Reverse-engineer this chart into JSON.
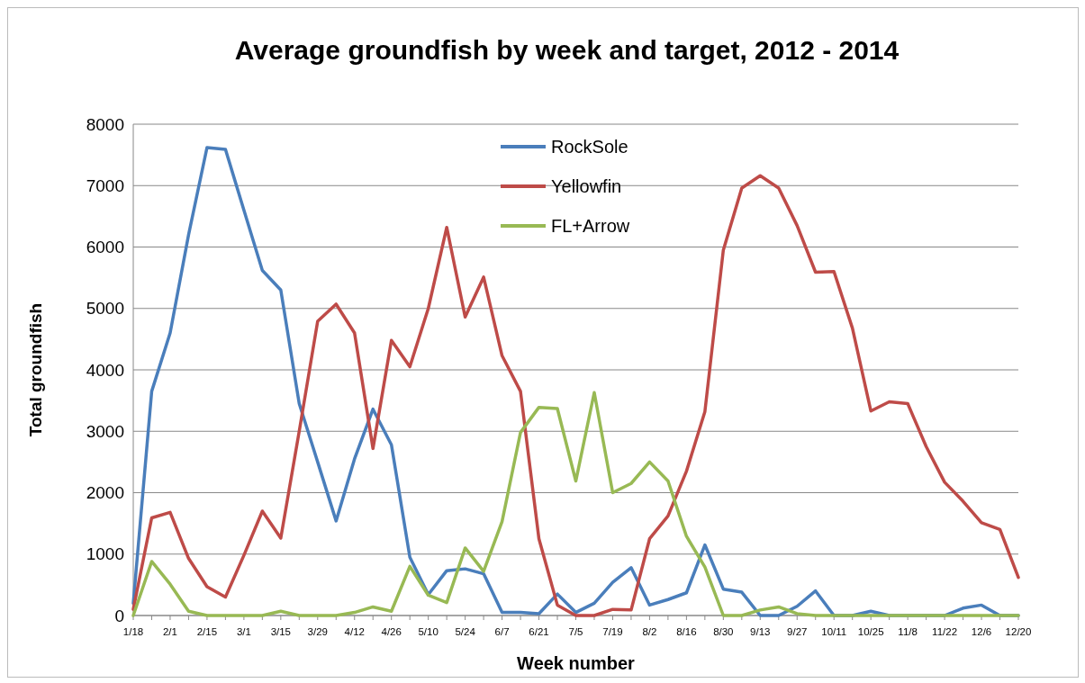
{
  "chart_data": {
    "type": "line",
    "title": "Average groundfish by week and target, 2012 - 2014",
    "xlabel": "Week number",
    "ylabel": "Total groundfish",
    "categories": [
      "1/18",
      null,
      "2/1",
      null,
      "2/15",
      null,
      "3/1",
      null,
      "3/15",
      null,
      "3/29",
      null,
      "4/12",
      null,
      "4/26",
      null,
      "5/10",
      null,
      "5/24",
      null,
      "6/7",
      null,
      "6/21",
      null,
      "7/5",
      null,
      "7/19",
      null,
      "8/2",
      null,
      "8/16",
      null,
      "8/30",
      null,
      "9/13",
      null,
      "9/27",
      null,
      "10/11",
      null,
      "10/25",
      null,
      "11/8",
      null,
      "11/22",
      null,
      "12/6",
      null,
      "12/20"
    ],
    "series": [
      {
        "name": "RockSole",
        "color": "#4a7ebb",
        "values": [
          200,
          3650,
          4600,
          6200,
          7620,
          7590,
          6600,
          5620,
          5300,
          3450,
          2500,
          1540,
          2550,
          3360,
          2780,
          950,
          340,
          730,
          760,
          680,
          50,
          50,
          30,
          350,
          50,
          200,
          540,
          780,
          170,
          260,
          370,
          1150,
          430,
          380,
          0,
          0,
          150,
          400,
          0,
          0,
          70,
          0,
          0,
          0,
          0,
          120,
          170,
          0,
          0
        ]
      },
      {
        "name": "Yellowfin",
        "color": "#be4b48",
        "values": [
          100,
          1590,
          1680,
          930,
          470,
          300,
          980,
          1700,
          1260,
          3000,
          4790,
          5070,
          4600,
          2720,
          4480,
          4050,
          5000,
          6320,
          4860,
          5510,
          4230,
          3650,
          1250,
          170,
          0,
          0,
          100,
          90,
          1250,
          1620,
          2350,
          3320,
          5950,
          6960,
          7160,
          6960,
          6350,
          5590,
          5600,
          4680,
          3330,
          3480,
          3450,
          2750,
          2170,
          1860,
          1510,
          1400,
          620
        ]
      },
      {
        "name": "FL+Arrow",
        "color": "#98b954",
        "values": [
          0,
          880,
          510,
          70,
          0,
          0,
          0,
          0,
          70,
          0,
          0,
          0,
          50,
          140,
          70,
          800,
          330,
          210,
          1100,
          720,
          1530,
          2980,
          3390,
          3370,
          2190,
          3630,
          2000,
          2150,
          2500,
          2190,
          1290,
          790,
          0,
          0,
          90,
          140,
          30,
          0,
          0,
          0,
          0,
          0,
          0,
          0,
          0,
          0,
          0,
          0,
          0
        ]
      }
    ],
    "ylim": [
      0,
      8000
    ],
    "yticks": [
      0,
      1000,
      2000,
      3000,
      4000,
      5000,
      6000,
      7000,
      8000
    ],
    "grid": "y",
    "legend": "top"
  }
}
